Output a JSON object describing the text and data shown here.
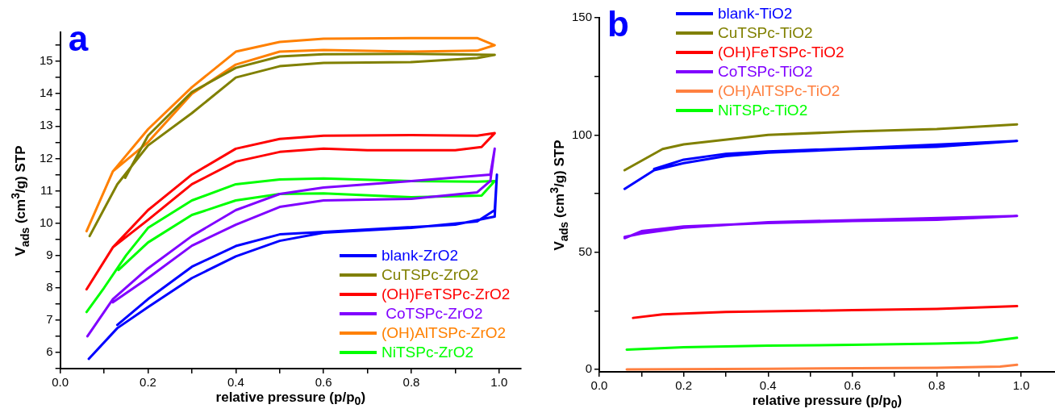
{
  "chart_data": [
    {
      "type": "line",
      "title": "a",
      "xlabel": "relative pressure  (p/p$_{0}$)",
      "ylabel": "V$_{ads}$ (cm$^{3}$/g)  STP",
      "legend": "bottom right",
      "xlim": [
        0,
        1.05
      ],
      "ylim": [
        5.5,
        15.9
      ],
      "xticks": [
        {
          "value": 0,
          "label": "0.0"
        },
        {
          "value": 0.1,
          "label": null
        },
        0.2,
        {
          "value": 0.3,
          "label": null
        },
        0.4,
        {
          "value": 0.5,
          "label": null
        },
        0.6,
        {
          "value": 0.7,
          "label": null
        },
        0.8,
        {
          "value": 0.9,
          "label": null
        },
        {
          "value": 1,
          "label": "1.0"
        }
      ],
      "yticks": [
        {
          "value": 5.5,
          "label": null
        },
        6,
        {
          "value": 6.5,
          "label": null
        },
        7,
        {
          "value": 7.5,
          "label": null
        },
        8,
        {
          "value": 8.5,
          "label": null
        },
        9,
        {
          "value": 9.5,
          "label": null
        },
        10,
        {
          "value": 10.5,
          "label": null
        },
        11,
        {
          "value": 11.5,
          "label": null
        },
        12,
        {
          "value": 12.5,
          "label": null
        },
        13,
        {
          "value": 13.5,
          "label": null
        },
        14,
        {
          "value": 14.5,
          "label": null
        },
        15,
        {
          "value": 15.5,
          "label": null
        }
      ],
      "series": [
        {
          "name": "blank-ZrO2",
          "color": "#0000ff",
          "x": [
            0.065,
            0.13,
            0.2,
            0.3,
            0.4,
            0.5,
            0.6,
            0.8,
            0.95,
            0.99,
            0.995,
            0.99,
            0.9,
            0.7,
            0.5,
            0.4,
            0.3,
            0.2,
            0.13
          ],
          "values": [
            5.8,
            6.75,
            7.4,
            8.3,
            8.97,
            9.45,
            9.7,
            9.85,
            10.05,
            10.4,
            11.5,
            10.2,
            9.95,
            9.8,
            9.65,
            9.29,
            8.65,
            7.65,
            6.85
          ]
        },
        {
          "name": "CuTSPc-ZrO2",
          "color": "#808000",
          "x": [
            0.067,
            0.13,
            0.2,
            0.3,
            0.4,
            0.5,
            0.6,
            0.8,
            0.95,
            0.99,
            0.8,
            0.6,
            0.5,
            0.4,
            0.3,
            0.2,
            0.148
          ],
          "values": [
            9.6,
            11.2,
            12.4,
            13.4,
            14.5,
            14.85,
            14.95,
            14.98,
            15.1,
            15.2,
            15.23,
            15.22,
            15.15,
            14.8,
            14.05,
            12.7,
            11.4
          ]
        },
        {
          "name": "(OH)FeTSPc-ZrO2",
          "color": "#ff0000",
          "x": [
            0.06,
            0.12,
            0.2,
            0.3,
            0.4,
            0.5,
            0.6,
            0.8,
            0.95,
            0.99,
            0.96,
            0.9,
            0.7,
            0.6,
            0.5,
            0.4,
            0.3,
            0.2,
            0.12
          ],
          "values": [
            7.95,
            9.25,
            10.4,
            11.5,
            12.3,
            12.6,
            12.7,
            12.72,
            12.7,
            12.78,
            12.35,
            12.25,
            12.25,
            12.3,
            12.2,
            11.9,
            11.2,
            10.1,
            9.25
          ]
        },
        {
          "name": " CoTSPc-ZrO2",
          "color": "#8000ff",
          "x": [
            0.12,
            0.2,
            0.3,
            0.4,
            0.5,
            0.6,
            0.8,
            0.95,
            0.98,
            0.99,
            0.98,
            0.8,
            0.6,
            0.5,
            0.4,
            0.3,
            0.2,
            0.12,
            0.062
          ],
          "values": [
            7.55,
            8.3,
            9.3,
            9.95,
            10.5,
            10.7,
            10.75,
            10.95,
            11.3,
            12.3,
            11.5,
            11.3,
            11.1,
            10.9,
            10.4,
            9.6,
            8.6,
            7.65,
            6.5
          ]
        },
        {
          "name": "(OH)AlTSPc-ZrO2",
          "color": "#ff8000",
          "x": [
            0.06,
            0.12,
            0.2,
            0.3,
            0.4,
            0.5,
            0.6,
            0.8,
            0.95,
            0.99,
            0.95,
            0.8,
            0.6,
            0.5,
            0.4,
            0.3,
            0.2,
            0.12
          ],
          "values": [
            9.75,
            11.6,
            12.9,
            14.2,
            15.3,
            15.6,
            15.7,
            15.72,
            15.72,
            15.5,
            15.33,
            15.3,
            15.35,
            15.3,
            14.9,
            14.0,
            12.5,
            11.6
          ]
        },
        {
          "name": "NiTSPc-ZrO2",
          "color": "#00ff00",
          "x": [
            0.06,
            0.1,
            0.15,
            0.2,
            0.3,
            0.4,
            0.5,
            0.6,
            0.8,
            0.95,
            0.99,
            0.96,
            0.8,
            0.6,
            0.5,
            0.4,
            0.3,
            0.2,
            0.133
          ],
          "values": [
            7.25,
            8.0,
            9.0,
            9.85,
            10.7,
            11.2,
            11.35,
            11.38,
            11.3,
            11.28,
            11.3,
            10.85,
            10.8,
            10.92,
            10.9,
            10.7,
            10.25,
            9.4,
            8.55
          ]
        }
      ]
    },
    {
      "type": "line",
      "title": "b",
      "xlabel": "relative pressure  (p/p$_{0}$)",
      "ylabel": "V$_{ads}$ (cm$^{3}$/g)  STP",
      "legend": "top",
      "xlim": [
        0,
        1.08
      ],
      "ylim": [
        -1,
        150
      ],
      "xticks": [
        {
          "value": 0,
          "label": "0.0"
        },
        {
          "value": 0.1,
          "label": null
        },
        0.2,
        {
          "value": 0.3,
          "label": null
        },
        0.4,
        {
          "value": 0.5,
          "label": null
        },
        0.6,
        {
          "value": 0.7,
          "label": null
        },
        0.8,
        {
          "value": 0.9,
          "label": null
        },
        {
          "value": 1,
          "label": "1.0"
        }
      ],
      "yticks": [
        0,
        {
          "value": 25,
          "label": null
        },
        50,
        {
          "value": 75,
          "label": null
        },
        100,
        {
          "value": 125,
          "label": null
        },
        150
      ],
      "series": [
        {
          "name": "blank-TiO2",
          "color": "#0000ff",
          "x": [
            0.06,
            0.13,
            0.2,
            0.3,
            0.4,
            0.6,
            0.8,
            0.99,
            0.6,
            0.4,
            0.3,
            0.2,
            0.13
          ],
          "values": [
            77,
            85,
            88,
            91,
            92.5,
            94,
            95,
            97.5,
            94.3,
            93,
            92,
            89.5,
            85.5
          ]
        },
        {
          "name": "CuTSPc-TiO2",
          "color": "#808000",
          "x": [
            0.06,
            0.15,
            0.2,
            0.4,
            0.6,
            0.8,
            0.99
          ],
          "values": [
            85,
            94,
            96,
            100,
            101.5,
            102.5,
            104.5
          ]
        },
        {
          "name": "(OH)FeTSPc-TiO2",
          "color": "#ff0000",
          "x": [
            0.08,
            0.15,
            0.3,
            0.6,
            0.8,
            0.99
          ],
          "values": [
            22,
            23.5,
            24.5,
            25.3,
            25.8,
            27
          ]
        },
        {
          "name": "CoTSPc-TiO2",
          "color": "#8000ff",
          "x": [
            0.06,
            0.1,
            0.2,
            0.4,
            0.6,
            0.8,
            0.99,
            0.6,
            0.4,
            0.2,
            0.1,
            0.06
          ],
          "values": [
            56,
            59,
            61,
            62.5,
            63.3,
            63.8,
            65.5,
            63.7,
            62.8,
            60.5,
            58,
            56.5
          ]
        },
        {
          "name": "(OH)AlTSPc-TiO2",
          "color": "#ff8040",
          "x": [
            0.065,
            0.4,
            0.8,
            0.95,
            0.99
          ],
          "values": [
            0,
            0.3,
            0.7,
            1.2,
            2
          ]
        },
        {
          "name": "NiTSPc-TiO2",
          "color": "#00ff00",
          "x": [
            0.065,
            0.2,
            0.4,
            0.6,
            0.8,
            0.9,
            0.99
          ],
          "values": [
            8.5,
            9.5,
            10.2,
            10.5,
            11,
            11.5,
            13.5
          ]
        }
      ]
    }
  ]
}
